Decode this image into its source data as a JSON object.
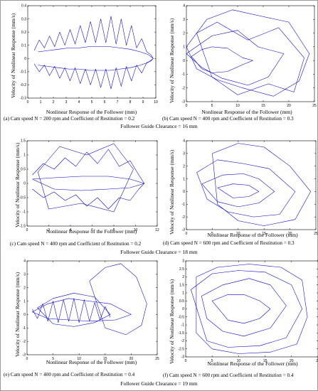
{
  "chart_data": [
    {
      "id": "a",
      "type": "line",
      "title": "",
      "xlabel": "Nonlinear Response of the Follower (mm)",
      "ylabel": "Velocity of Nonlinear Response (mm/s)",
      "caption": "(a) Cam speed N = 200 rpm and Coefficient of Restitution = 0.2",
      "xlim": [
        0,
        10
      ],
      "ylim": [
        -0.3,
        0.4
      ],
      "xticks": [
        0,
        1,
        2,
        3,
        4,
        5,
        6,
        7,
        8,
        9,
        10
      ],
      "yticks": [
        -0.3,
        -0.2,
        -0.1,
        0,
        0.1,
        0.2,
        0.3,
        0.4
      ],
      "ytick_labels": [
        "-0.3",
        "-0.2",
        "-0.1",
        "0",
        "0.1",
        "0.2",
        "0.3",
        "0.4"
      ],
      "color": "#0000cc",
      "series": [
        {
          "x": [
            0.5,
            0.9,
            1.3,
            1.7,
            2.1,
            2.5,
            2.9,
            3.3,
            3.7,
            4.1,
            4.5,
            4.9,
            5.3,
            5.7,
            6.1,
            6.5,
            6.9,
            7.3,
            7.7,
            8.1,
            8.5,
            8.9,
            9.3,
            9.6,
            9.8
          ],
          "y": [
            0.06,
            0.14,
            0.08,
            0.17,
            0.09,
            0.2,
            0.1,
            0.22,
            0.11,
            0.25,
            0.12,
            0.28,
            0.12,
            0.3,
            0.12,
            0.32,
            0.11,
            0.3,
            0.1,
            0.25,
            0.08,
            0.15,
            0.05,
            0.03,
            0.0
          ]
        },
        {
          "x": [
            0.5,
            0.9,
            1.3,
            1.7,
            2.1,
            2.5,
            2.9,
            3.3,
            3.7,
            4.1,
            4.5,
            4.9,
            5.3,
            5.7,
            6.1,
            6.5,
            6.9,
            7.3,
            7.7,
            8.1,
            8.5,
            8.9,
            9.3,
            9.6,
            9.8
          ],
          "y": [
            -0.04,
            -0.1,
            -0.05,
            -0.13,
            -0.06,
            -0.15,
            -0.07,
            -0.17,
            -0.07,
            -0.19,
            -0.08,
            -0.2,
            -0.08,
            -0.22,
            -0.08,
            -0.23,
            -0.07,
            -0.21,
            -0.06,
            -0.17,
            -0.05,
            -0.11,
            -0.03,
            -0.02,
            0.0
          ]
        },
        {
          "x": [
            0.8,
            1.6,
            2.4,
            3.2,
            4.0,
            4.8,
            5.6,
            6.4,
            7.2,
            8.0,
            8.8,
            9.4,
            9.8,
            9.4,
            8.8,
            8.0,
            7.2,
            6.4,
            5.6,
            4.8,
            4.0,
            3.2,
            2.4,
            1.6,
            0.8
          ],
          "y": [
            0.05,
            0.06,
            0.07,
            0.08,
            0.08,
            0.09,
            0.09,
            0.09,
            0.08,
            0.07,
            0.05,
            0.03,
            0.0,
            -0.03,
            -0.05,
            -0.07,
            -0.08,
            -0.09,
            -0.09,
            -0.09,
            -0.08,
            -0.08,
            -0.07,
            -0.06,
            -0.05
          ]
        }
      ]
    },
    {
      "id": "b",
      "type": "line",
      "title": "",
      "xlabel": "Nonlinear Response of the Follower (mm)",
      "ylabel": "Velocity of Nonlinear Response (mm/s)",
      "caption": "(b) Cam speed N = 400 rpm and Coefficient of Restitution = 0.3",
      "xlim": [
        0,
        25
      ],
      "ylim": [
        -3,
        4
      ],
      "xticks": [
        0,
        5,
        10,
        15,
        20,
        25
      ],
      "yticks": [
        -3,
        -2,
        -1,
        0,
        1,
        2,
        3,
        4
      ],
      "ytick_labels": [
        "-3",
        "-2",
        "-1",
        "0",
        "1",
        "2",
        "3",
        "4"
      ],
      "color": "#0000cc",
      "series": [
        {
          "x": [
            1,
            3,
            5,
            8,
            11,
            13,
            11,
            8,
            5,
            3,
            1
          ],
          "y": [
            0.3,
            0.8,
            1.0,
            0.9,
            0.2,
            0,
            -0.3,
            -0.8,
            -0.9,
            -0.6,
            0.3
          ]
        },
        {
          "x": [
            0,
            4,
            9,
            15,
            20,
            24,
            22,
            17,
            11,
            6,
            2,
            0
          ],
          "y": [
            1,
            3,
            3.7,
            3.2,
            2.8,
            0.5,
            -1.5,
            -2.6,
            -2,
            -1.4,
            -0.6,
            1
          ]
        },
        {
          "x": [
            2,
            6,
            12,
            18,
            23,
            21,
            16,
            10,
            5,
            2
          ],
          "y": [
            2,
            2.8,
            1.5,
            2.4,
            0.2,
            -2.3,
            -1.7,
            -2.5,
            -1.2,
            2
          ]
        },
        {
          "x": [
            0,
            5,
            10,
            14,
            19,
            16,
            12,
            7,
            3,
            0
          ],
          "y": [
            0.5,
            1.8,
            2.2,
            1.0,
            0.5,
            -1.2,
            -1.8,
            -1.3,
            -0.5,
            0.5
          ]
        }
      ]
    },
    {
      "id": "c",
      "type": "line",
      "title": "",
      "xlabel": "Nonlinear Response of the Follower (mm)",
      "ylabel": "Velocity of Nonlinear Response (mm/s)",
      "caption": "(c) Cam speed N = 400 rpm and Coefficient of Restitution = 0.2",
      "xlim": [
        0,
        12
      ],
      "ylim": [
        -1.5,
        1.5
      ],
      "xticks": [
        0,
        2,
        4,
        6,
        8,
        10,
        12
      ],
      "yticks": [
        -1.5,
        -1,
        -0.5,
        0,
        0.5,
        1,
        1.5
      ],
      "ytick_labels": [
        "-1.5",
        "-1",
        "-0.5",
        "0",
        "0.5",
        "1",
        "1.5"
      ],
      "color": "#0000cc",
      "series": [
        {
          "x": [
            0.5,
            1.5,
            2.5,
            3.5,
            4.5,
            5.5,
            6.5,
            7.5,
            8.5,
            9.5,
            10.3,
            10.8
          ],
          "y": [
            0.3,
            0.7,
            0.5,
            0.9,
            0.6,
            1.1,
            0.7,
            1.2,
            0.6,
            0.8,
            0.3,
            0.0
          ]
        },
        {
          "x": [
            0.5,
            1.5,
            2.5,
            3.5,
            4.5,
            5.5,
            6.5,
            7.5,
            8.5,
            9.5,
            10.3,
            10.8
          ],
          "y": [
            -0.2,
            -0.5,
            -0.3,
            -0.6,
            -0.4,
            -0.8,
            -0.5,
            -0.9,
            -0.5,
            -0.6,
            -0.2,
            0.0
          ]
        },
        {
          "x": [
            0.5,
            2.5,
            5,
            7.5,
            9.5,
            10.8,
            9.5,
            7.5,
            5,
            2.5,
            0.5
          ],
          "y": [
            0.15,
            0.2,
            0.25,
            0.25,
            0.15,
            0,
            -0.15,
            -0.2,
            -0.25,
            -0.2,
            0.15
          ]
        },
        {
          "x": [
            1,
            3,
            5.5,
            8,
            9.8,
            8,
            5,
            2,
            1
          ],
          "y": [
            0.4,
            1.3,
            1.0,
            1.4,
            0.5,
            -1.0,
            -0.7,
            -0.9,
            0.4
          ]
        }
      ]
    },
    {
      "id": "d",
      "type": "line",
      "title": "",
      "xlabel": "Nonlinear Response of the Follower (mm)",
      "ylabel": "Velocity of Nonlinear Response (mm/s)",
      "caption": "(d) Cam speed N = 600 rpm and Coefficient of Restitution = 0.3",
      "xlim": [
        0,
        25
      ],
      "ylim": [
        -3,
        4
      ],
      "xticks": [
        0,
        5,
        10,
        15,
        20,
        25
      ],
      "yticks": [
        -3,
        -2,
        -1,
        0,
        1,
        2,
        3,
        4
      ],
      "ytick_labels": [
        "-3",
        "-2",
        "-1",
        "0",
        "1",
        "2",
        "3",
        "4"
      ],
      "color": "#0000cc",
      "series": [
        {
          "x": [
            5,
            10,
            15,
            20,
            24,
            21,
            15,
            10,
            6,
            5
          ],
          "y": [
            3,
            3.8,
            3.5,
            2,
            0,
            -2.2,
            -2.7,
            -2.3,
            -1,
            3
          ]
        },
        {
          "x": [
            2,
            6,
            11,
            16,
            21,
            18,
            13,
            8,
            4,
            2
          ],
          "y": [
            1.5,
            2.5,
            2.2,
            1.8,
            0,
            -1.8,
            -2,
            -1.6,
            -0.6,
            1.5
          ]
        },
        {
          "x": [
            3,
            7,
            11,
            14,
            17,
            14,
            10,
            6,
            3
          ],
          "y": [
            0.6,
            1.3,
            1.4,
            1.0,
            0,
            -0.9,
            -1.2,
            -0.8,
            0.6
          ]
        },
        {
          "x": [
            6,
            9,
            12,
            14,
            12,
            9,
            6
          ],
          "y": [
            0.3,
            0.6,
            0.5,
            0,
            -0.4,
            -0.5,
            0.3
          ]
        }
      ]
    },
    {
      "id": "e",
      "type": "line",
      "title": "",
      "xlabel": "Nonlinear Response of the Follower (mm)",
      "ylabel": "Velocity of Nonlinear Response (mm/s)",
      "caption": "(e) Cam speed N = 400 rpm and Coefficient of Restitution = 0.4",
      "xlim": [
        0,
        25
      ],
      "ylim": [
        -3,
        4
      ],
      "xticks": [
        0,
        5,
        10,
        15,
        20,
        25
      ],
      "yticks": [
        -3,
        -2,
        -1,
        0,
        1,
        2,
        3,
        4
      ],
      "ytick_labels": [
        "-3",
        "-2",
        "-1",
        "0",
        "1",
        "2",
        "3",
        "4"
      ],
      "color": "#0000cc",
      "series": [
        {
          "x": [
            1,
            4,
            8,
            12,
            16,
            19,
            20,
            17,
            12,
            8,
            4,
            1
          ],
          "y": [
            0.2,
            0.8,
            1.2,
            1.0,
            0.8,
            0.2,
            0,
            -0.4,
            -0.5,
            -0.4,
            -0.3,
            0.2
          ]
        },
        {
          "x": [
            12,
            15,
            18,
            21,
            23,
            22,
            19,
            15,
            12
          ],
          "y": [
            2.5,
            3.5,
            3.8,
            2.8,
            0.8,
            -0.8,
            -1.5,
            -1.0,
            2.5
          ]
        },
        {
          "x": [
            2,
            5,
            9,
            13,
            16,
            13,
            9,
            5,
            2
          ],
          "y": [
            0.5,
            1.2,
            1.6,
            1.3,
            0,
            -0.6,
            -0.9,
            -0.7,
            0.5
          ]
        },
        {
          "x": [
            1,
            2,
            3,
            4,
            5,
            6,
            7,
            8,
            9,
            10,
            11,
            12,
            13,
            14,
            15,
            16
          ],
          "y": [
            0.4,
            -0.3,
            0.8,
            -0.5,
            1.0,
            -0.6,
            1.1,
            -0.5,
            1.2,
            -0.6,
            1.1,
            -0.5,
            0.9,
            -0.4,
            0.6,
            -0.2
          ]
        }
      ]
    },
    {
      "id": "f",
      "type": "line",
      "title": "",
      "xlabel": "Nonlinear Response of the Follower (mm)",
      "ylabel": "Velocity of Nonlinear Response (mm/s)",
      "caption": "(f) Cam speed N = 600 rpm and Coefficient of Restitution = 0.4",
      "xlim": [
        0,
        25
      ],
      "ylim": [
        -3,
        3
      ],
      "xticks": [
        0,
        5,
        10,
        15,
        20,
        25
      ],
      "yticks": [
        -3,
        -2.5,
        -2,
        -1.5,
        -1,
        -0.5,
        0,
        0.5,
        1,
        1.5,
        2,
        2.5,
        3
      ],
      "ytick_labels": [
        "-3",
        "-2.5",
        "-2",
        "-1.5",
        "-1",
        "-0.5",
        "0",
        "0.5",
        "1",
        "1.5",
        "2",
        "2.5",
        "3"
      ],
      "color": "#0000cc",
      "series": [
        {
          "x": [
            2,
            6,
            12,
            18,
            22,
            23,
            21,
            16,
            10,
            5,
            2,
            2
          ],
          "y": [
            2.0,
            2.6,
            2.8,
            2.6,
            1.8,
            -0.5,
            -2.2,
            -2.7,
            -2.8,
            -2.5,
            -1.5,
            2.0
          ]
        },
        {
          "x": [
            1,
            5,
            10,
            15,
            20,
            22,
            19,
            14,
            8,
            4,
            1
          ],
          "y": [
            1.2,
            2.2,
            2.4,
            2.3,
            1.5,
            0,
            -1.8,
            -2.3,
            -2.4,
            -2.0,
            1.2
          ]
        },
        {
          "x": [
            3,
            7,
            12,
            16,
            19,
            16,
            11,
            7,
            4,
            3
          ],
          "y": [
            0.8,
            1.5,
            1.9,
            1.5,
            0.2,
            -1.2,
            -1.7,
            -1.4,
            -0.6,
            0.8
          ]
        },
        {
          "x": [
            5,
            8,
            11,
            14,
            16,
            14,
            11,
            8,
            5
          ],
          "y": [
            0.5,
            0.9,
            0.9,
            0.5,
            0,
            -0.6,
            -0.9,
            -0.7,
            0.5
          ]
        }
      ]
    }
  ],
  "groups": [
    "Follower Guide Clearance = 16 mm",
    "Follower Guide Clearance = 18 mm",
    "Follower Guide Clearance = 19 mm"
  ]
}
